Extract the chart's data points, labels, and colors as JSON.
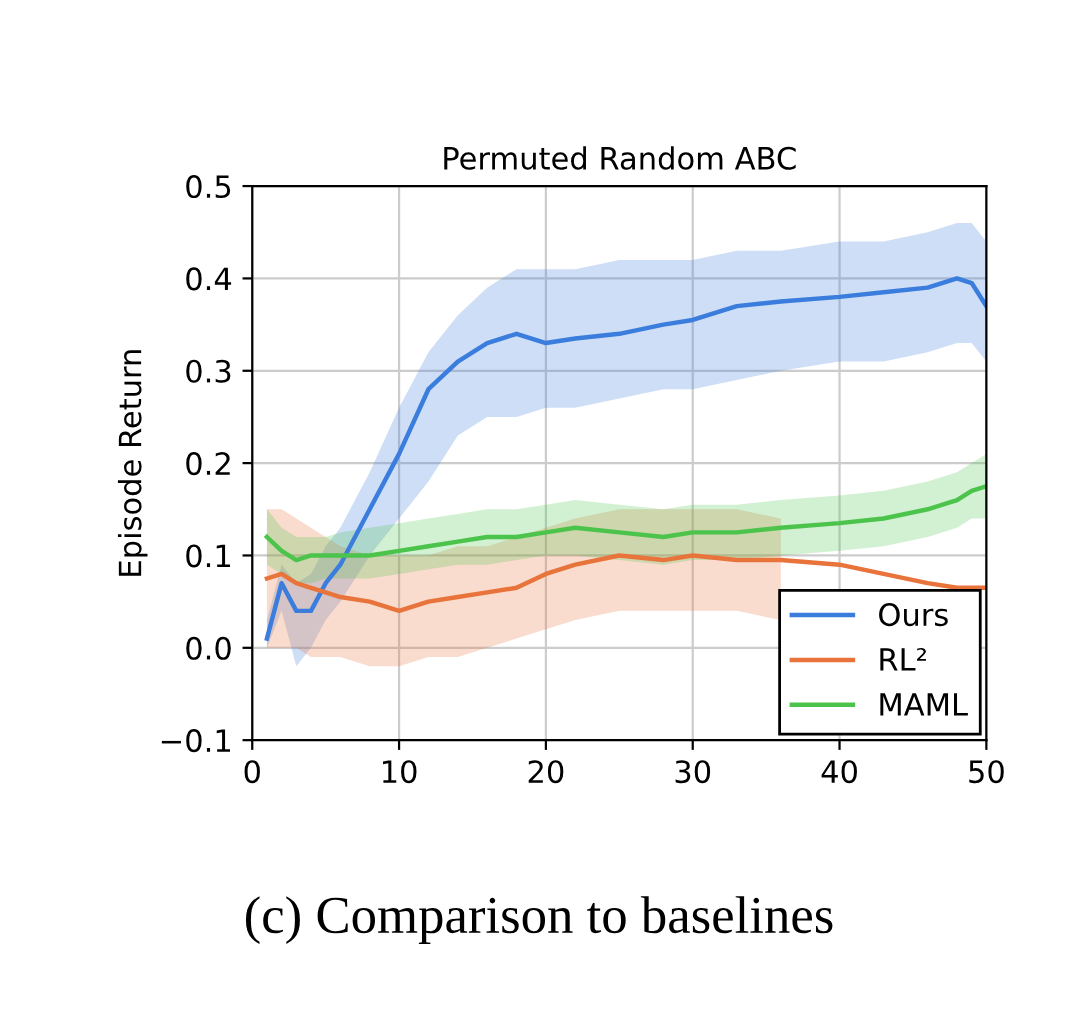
{
  "chart_data": {
    "type": "line",
    "title": "Permuted Random ABC",
    "ylabel": "Episode Return",
    "x": [
      1,
      2,
      3,
      4,
      5,
      6,
      8,
      10,
      12,
      14,
      16,
      18,
      20,
      22,
      25,
      28,
      30,
      33,
      36,
      40,
      43,
      46,
      48,
      49,
      50
    ],
    "series": [
      {
        "name": "Ours",
        "color": "#3b7ddd",
        "values": [
          0.01,
          0.07,
          0.04,
          0.04,
          0.07,
          0.09,
          0.15,
          0.21,
          0.28,
          0.31,
          0.33,
          0.34,
          0.33,
          0.335,
          0.34,
          0.35,
          0.355,
          0.37,
          0.375,
          0.38,
          0.385,
          0.39,
          0.4,
          0.395,
          0.37
        ],
        "upper": [
          0.03,
          0.09,
          0.07,
          0.08,
          0.11,
          0.13,
          0.19,
          0.26,
          0.32,
          0.36,
          0.39,
          0.41,
          0.41,
          0.41,
          0.42,
          0.42,
          0.42,
          0.43,
          0.43,
          0.44,
          0.44,
          0.45,
          0.46,
          0.46,
          0.44
        ],
        "lower": [
          0.0,
          0.04,
          -0.02,
          0.0,
          0.03,
          0.05,
          0.1,
          0.14,
          0.18,
          0.23,
          0.25,
          0.25,
          0.26,
          0.26,
          0.27,
          0.28,
          0.28,
          0.29,
          0.3,
          0.31,
          0.31,
          0.32,
          0.33,
          0.33,
          0.31
        ]
      },
      {
        "name": "RL²",
        "color": "#e8743b",
        "values": [
          0.075,
          0.08,
          0.07,
          0.065,
          0.06,
          0.055,
          0.05,
          0.04,
          0.05,
          0.055,
          0.06,
          0.065,
          0.08,
          0.09,
          0.1,
          0.095,
          0.1,
          0.095,
          0.095,
          0.09,
          0.08,
          0.07,
          0.065,
          0.065,
          0.065
        ],
        "upper": [
          0.15,
          0.15,
          0.14,
          0.13,
          0.12,
          0.11,
          0.1,
          0.1,
          0.1,
          0.11,
          0.11,
          0.12,
          0.13,
          0.14,
          0.15,
          0.15,
          0.15,
          0.15,
          0.14,
          null,
          null,
          null,
          null,
          null,
          null
        ],
        "lower": [
          0.0,
          0.0,
          0.0,
          -0.01,
          -0.01,
          -0.01,
          -0.02,
          -0.02,
          -0.01,
          -0.01,
          0.0,
          0.01,
          0.02,
          0.03,
          0.04,
          0.04,
          0.04,
          0.04,
          0.03,
          null,
          null,
          null,
          null,
          null,
          null
        ]
      },
      {
        "name": "MAML",
        "color": "#4cc44c",
        "values": [
          0.12,
          0.105,
          0.095,
          0.1,
          0.1,
          0.1,
          0.1,
          0.105,
          0.11,
          0.115,
          0.12,
          0.12,
          0.125,
          0.13,
          0.125,
          0.12,
          0.125,
          0.125,
          0.13,
          0.135,
          0.14,
          0.15,
          0.16,
          0.17,
          0.175
        ],
        "upper": [
          0.15,
          0.13,
          0.12,
          0.12,
          0.12,
          0.125,
          0.13,
          0.135,
          0.14,
          0.145,
          0.15,
          0.15,
          0.155,
          0.16,
          0.155,
          0.15,
          0.155,
          0.155,
          0.16,
          0.165,
          0.17,
          0.18,
          0.19,
          0.2,
          0.21
        ],
        "lower": [
          0.09,
          0.08,
          0.07,
          0.07,
          0.075,
          0.075,
          0.075,
          0.08,
          0.085,
          0.09,
          0.09,
          0.095,
          0.1,
          0.1,
          0.095,
          0.09,
          0.095,
          0.095,
          0.1,
          0.105,
          0.11,
          0.12,
          0.13,
          0.14,
          0.14
        ]
      }
    ],
    "xlim": [
      0,
      50
    ],
    "xticks": [
      0,
      10,
      20,
      30,
      40,
      50
    ],
    "ylim": [
      -0.1,
      0.5
    ],
    "yticks": [
      {
        "value": -0.1,
        "label": "−0.1"
      },
      {
        "value": 0.0,
        "label": "0.0"
      },
      {
        "value": 0.1,
        "label": "0.1"
      },
      {
        "value": 0.2,
        "label": "0.2"
      },
      {
        "value": 0.3,
        "label": "0.3"
      },
      {
        "value": 0.4,
        "label": "0.4"
      },
      {
        "value": 0.5,
        "label": "0.5"
      }
    ],
    "grid": true,
    "legend": "bottom right",
    "annotations": [
      "(c) Comparison to baselines"
    ]
  }
}
